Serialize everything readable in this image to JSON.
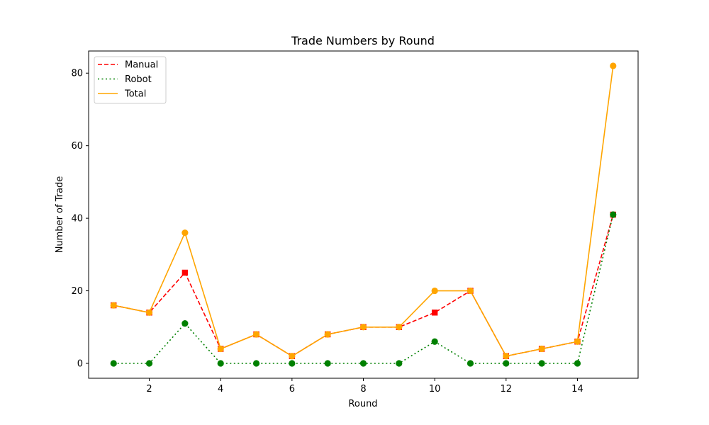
{
  "chart_data": {
    "type": "line",
    "title": "Trade Numbers by Round",
    "xlabel": "Round",
    "ylabel": "Number of Trade",
    "x": [
      1,
      2,
      3,
      4,
      5,
      6,
      7,
      8,
      9,
      10,
      11,
      12,
      13,
      14,
      15
    ],
    "xlim": [
      0.3,
      15.7
    ],
    "ylim": [
      -4.1,
      86.1
    ],
    "xticks": [
      2,
      4,
      6,
      8,
      10,
      12,
      14
    ],
    "yticks": [
      0,
      20,
      40,
      60,
      80
    ],
    "grid": false,
    "legend_position": "upper-left",
    "series": [
      {
        "name": "Manual",
        "color": "#ff0000",
        "style": "dashed",
        "marker": "square",
        "values": [
          16,
          14,
          25,
          4,
          8,
          2,
          8,
          10,
          10,
          14,
          20,
          2,
          4,
          6,
          41
        ]
      },
      {
        "name": "Robot",
        "color": "#008000",
        "style": "dotted",
        "marker": "circle",
        "values": [
          0,
          0,
          11,
          0,
          0,
          0,
          0,
          0,
          0,
          6,
          0,
          0,
          0,
          0,
          41
        ]
      },
      {
        "name": "Total",
        "color": "#ffa500",
        "style": "solid",
        "marker": "circle",
        "values": [
          16,
          14,
          36,
          4,
          8,
          2,
          8,
          10,
          10,
          20,
          20,
          2,
          4,
          6,
          82
        ]
      }
    ]
  }
}
